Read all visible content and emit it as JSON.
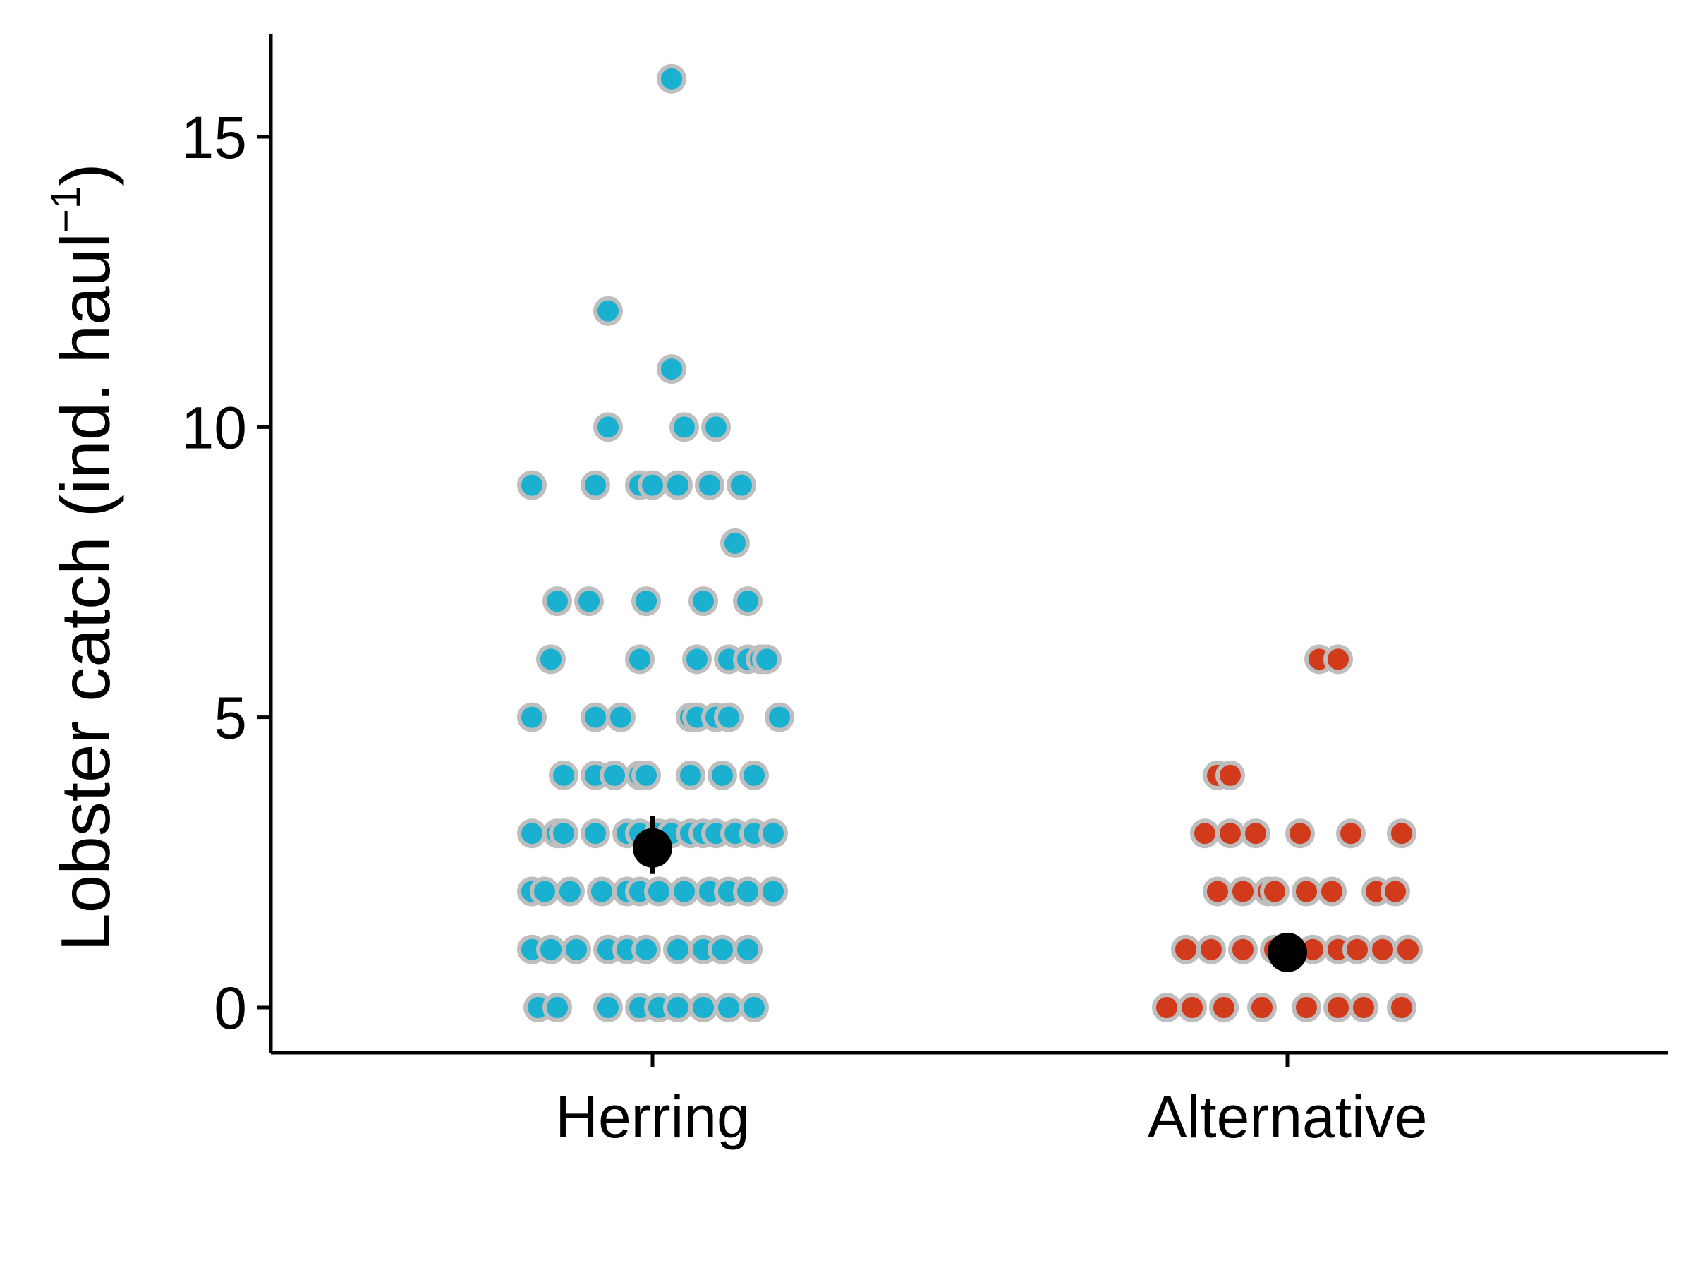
{
  "chart_data": {
    "type": "scatter",
    "title": "",
    "xlabel": "",
    "ylabel": "Lobster catch (ind. haul⁻¹)",
    "ylabel_parts": {
      "main": "Lobster catch (ind. haul",
      "superscript": "−1",
      "close": ")"
    },
    "categories": [
      "Herring",
      "Alternative"
    ],
    "yticks": [
      0,
      5,
      10,
      15
    ],
    "ylim": [
      -0.75,
      16.75
    ],
    "grid": false,
    "legend": "none",
    "series": [
      {
        "category": "Herring",
        "color": "#1AB0CF",
        "edge_color": "#BEBEBE",
        "points": [
          {
            "y": 16,
            "jitter": 0.03
          },
          {
            "y": 12,
            "jitter": -0.07
          },
          {
            "y": 11,
            "jitter": 0.03
          },
          {
            "y": 10,
            "jitter": -0.07
          },
          {
            "y": 10,
            "jitter": 0.05
          },
          {
            "y": 10,
            "jitter": 0.1
          },
          {
            "y": 9,
            "jitter": -0.19
          },
          {
            "y": 9,
            "jitter": -0.09
          },
          {
            "y": 9,
            "jitter": -0.02
          },
          {
            "y": 9,
            "jitter": 0.0
          },
          {
            "y": 9,
            "jitter": 0.04
          },
          {
            "y": 9,
            "jitter": 0.09
          },
          {
            "y": 9,
            "jitter": 0.14
          },
          {
            "y": 8,
            "jitter": 0.13
          },
          {
            "y": 7,
            "jitter": -0.15
          },
          {
            "y": 7,
            "jitter": -0.1
          },
          {
            "y": 7,
            "jitter": -0.01
          },
          {
            "y": 7,
            "jitter": 0.08
          },
          {
            "y": 7,
            "jitter": 0.15
          },
          {
            "y": 6,
            "jitter": -0.16
          },
          {
            "y": 6,
            "jitter": -0.02
          },
          {
            "y": 6,
            "jitter": 0.07
          },
          {
            "y": 6,
            "jitter": 0.12
          },
          {
            "y": 6,
            "jitter": 0.15
          },
          {
            "y": 6,
            "jitter": 0.17
          },
          {
            "y": 6,
            "jitter": 0.18
          },
          {
            "y": 5,
            "jitter": -0.19
          },
          {
            "y": 5,
            "jitter": -0.09
          },
          {
            "y": 5,
            "jitter": -0.05
          },
          {
            "y": 5,
            "jitter": 0.06
          },
          {
            "y": 5,
            "jitter": 0.07
          },
          {
            "y": 5,
            "jitter": 0.1
          },
          {
            "y": 5,
            "jitter": 0.12
          },
          {
            "y": 5,
            "jitter": 0.2
          },
          {
            "y": 4,
            "jitter": -0.14
          },
          {
            "y": 4,
            "jitter": -0.09
          },
          {
            "y": 4,
            "jitter": -0.06
          },
          {
            "y": 4,
            "jitter": -0.02
          },
          {
            "y": 4,
            "jitter": -0.01
          },
          {
            "y": 4,
            "jitter": 0.06
          },
          {
            "y": 4,
            "jitter": 0.11
          },
          {
            "y": 4,
            "jitter": 0.16
          },
          {
            "y": 3,
            "jitter": -0.19
          },
          {
            "y": 3,
            "jitter": -0.15
          },
          {
            "y": 3,
            "jitter": -0.14
          },
          {
            "y": 3,
            "jitter": -0.09
          },
          {
            "y": 3,
            "jitter": -0.04
          },
          {
            "y": 3,
            "jitter": -0.02
          },
          {
            "y": 3,
            "jitter": 0.01
          },
          {
            "y": 3,
            "jitter": 0.03
          },
          {
            "y": 3,
            "jitter": 0.06
          },
          {
            "y": 3,
            "jitter": 0.08
          },
          {
            "y": 3,
            "jitter": 0.1
          },
          {
            "y": 3,
            "jitter": 0.13
          },
          {
            "y": 3,
            "jitter": 0.16
          },
          {
            "y": 3,
            "jitter": 0.19
          },
          {
            "y": 2,
            "jitter": -0.19
          },
          {
            "y": 2,
            "jitter": -0.17
          },
          {
            "y": 2,
            "jitter": -0.13
          },
          {
            "y": 2,
            "jitter": -0.08
          },
          {
            "y": 2,
            "jitter": -0.04
          },
          {
            "y": 2,
            "jitter": -0.02
          },
          {
            "y": 2,
            "jitter": 0.01
          },
          {
            "y": 2,
            "jitter": 0.05
          },
          {
            "y": 2,
            "jitter": 0.09
          },
          {
            "y": 2,
            "jitter": 0.12
          },
          {
            "y": 2,
            "jitter": 0.15
          },
          {
            "y": 2,
            "jitter": 0.19
          },
          {
            "y": 1,
            "jitter": -0.19
          },
          {
            "y": 1,
            "jitter": -0.16
          },
          {
            "y": 1,
            "jitter": -0.12
          },
          {
            "y": 1,
            "jitter": -0.07
          },
          {
            "y": 1,
            "jitter": -0.04
          },
          {
            "y": 1,
            "jitter": -0.01
          },
          {
            "y": 1,
            "jitter": 0.04
          },
          {
            "y": 1,
            "jitter": 0.08
          },
          {
            "y": 1,
            "jitter": 0.11
          },
          {
            "y": 1,
            "jitter": 0.15
          },
          {
            "y": 0,
            "jitter": -0.18
          },
          {
            "y": 0,
            "jitter": -0.15
          },
          {
            "y": 0,
            "jitter": -0.07
          },
          {
            "y": 0,
            "jitter": -0.02
          },
          {
            "y": 0,
            "jitter": 0.01
          },
          {
            "y": 0,
            "jitter": 0.04
          },
          {
            "y": 0,
            "jitter": 0.08
          },
          {
            "y": 0,
            "jitter": 0.12
          },
          {
            "y": 0,
            "jitter": 0.16
          }
        ],
        "mean": 2.75,
        "error": [
          2.3,
          3.3
        ]
      },
      {
        "category": "Alternative",
        "color": "#D13A1A",
        "edge_color": "#BEBEBE",
        "points": [
          {
            "y": 6,
            "jitter": 0.05
          },
          {
            "y": 6,
            "jitter": 0.08
          },
          {
            "y": 4,
            "jitter": -0.11
          },
          {
            "y": 4,
            "jitter": -0.09
          },
          {
            "y": 3,
            "jitter": -0.13
          },
          {
            "y": 3,
            "jitter": -0.09
          },
          {
            "y": 3,
            "jitter": -0.05
          },
          {
            "y": 3,
            "jitter": 0.02
          },
          {
            "y": 3,
            "jitter": 0.1
          },
          {
            "y": 3,
            "jitter": 0.18
          },
          {
            "y": 2,
            "jitter": -0.11
          },
          {
            "y": 2,
            "jitter": -0.07
          },
          {
            "y": 2,
            "jitter": -0.03
          },
          {
            "y": 2,
            "jitter": -0.02
          },
          {
            "y": 2,
            "jitter": 0.03
          },
          {
            "y": 2,
            "jitter": 0.07
          },
          {
            "y": 2,
            "jitter": 0.14
          },
          {
            "y": 2,
            "jitter": 0.17
          },
          {
            "y": 1,
            "jitter": -0.16
          },
          {
            "y": 1,
            "jitter": -0.12
          },
          {
            "y": 1,
            "jitter": -0.07
          },
          {
            "y": 1,
            "jitter": -0.02
          },
          {
            "y": 1,
            "jitter": 0.04
          },
          {
            "y": 1,
            "jitter": 0.08
          },
          {
            "y": 1,
            "jitter": 0.11
          },
          {
            "y": 1,
            "jitter": 0.15
          },
          {
            "y": 1,
            "jitter": 0.19
          },
          {
            "y": 0,
            "jitter": -0.19
          },
          {
            "y": 0,
            "jitter": -0.15
          },
          {
            "y": 0,
            "jitter": -0.1
          },
          {
            "y": 0,
            "jitter": -0.04
          },
          {
            "y": 0,
            "jitter": 0.03
          },
          {
            "y": 0,
            "jitter": 0.08
          },
          {
            "y": 0,
            "jitter": 0.12
          },
          {
            "y": 0,
            "jitter": 0.18
          }
        ],
        "mean": 0.95,
        "error": [
          0.8,
          1.1
        ]
      }
    ]
  }
}
